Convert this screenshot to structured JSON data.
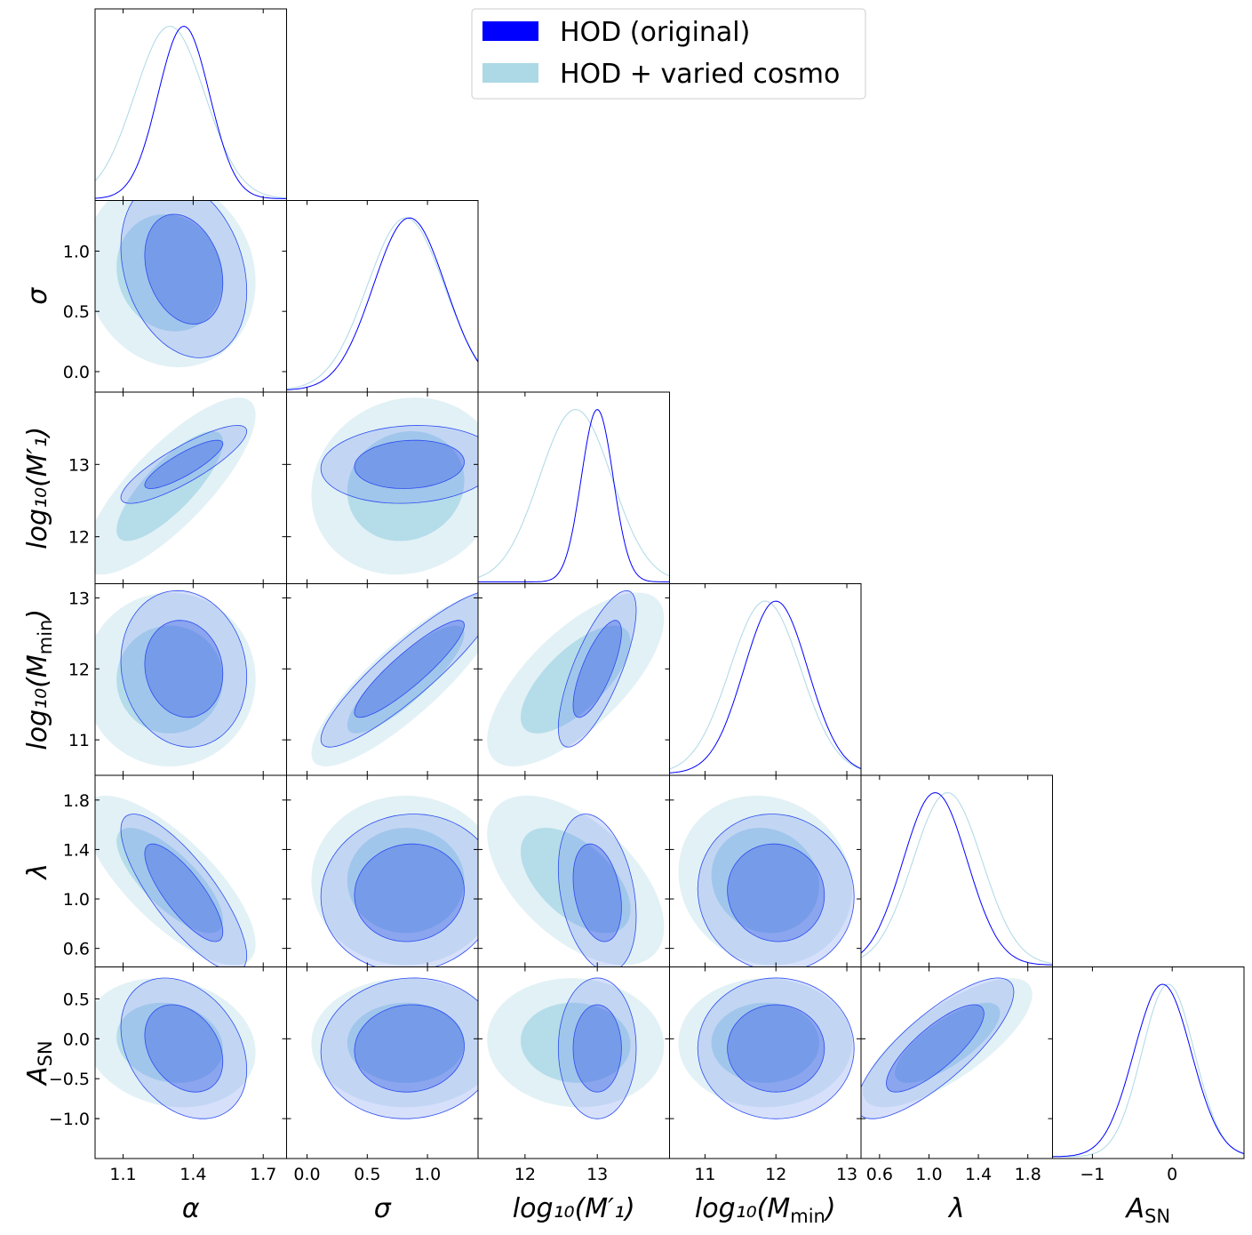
{
  "chart_data": {
    "type": "corner",
    "title": "",
    "parameters": [
      {
        "key": "alpha",
        "label": "α",
        "range": [
          0.98,
          1.8
        ],
        "ticks": [
          1.1,
          1.4,
          1.7
        ],
        "tick_labels": [
          "1.1",
          "1.4",
          "1.7"
        ]
      },
      {
        "key": "sigma",
        "label": "σ",
        "range": [
          -0.17,
          1.42
        ],
        "ticks": [
          0.0,
          0.5,
          1.0
        ],
        "tick_labels": [
          "0.0",
          "0.5",
          "1.0"
        ]
      },
      {
        "key": "logM1",
        "label": "log₁₀(M′₁)",
        "range": [
          11.35,
          14.0
        ],
        "ticks": [
          12,
          13
        ],
        "tick_labels": [
          "12",
          "13"
        ]
      },
      {
        "key": "logMmin",
        "label": "log₁₀(Mmin)",
        "range": [
          10.5,
          13.2
        ],
        "ticks": [
          11,
          12,
          13
        ],
        "tick_labels": [
          "11",
          "12",
          "13"
        ]
      },
      {
        "key": "lambda",
        "label": "λ",
        "range": [
          0.45,
          2.0
        ],
        "ticks": [
          0.6,
          1.0,
          1.4,
          1.8
        ],
        "tick_labels": [
          "0.6",
          "1.0",
          "1.4",
          "1.8"
        ]
      },
      {
        "key": "A_SN",
        "label": "ASN",
        "range": [
          -1.5,
          0.9
        ],
        "ticks": [
          -1,
          0
        ],
        "tick_labels": [
          "−1",
          "0"
        ]
      }
    ],
    "y_tick_labels": {
      "sigma": [
        "0.0",
        "0.5",
        "1.0"
      ],
      "logM1": [
        "12",
        "13"
      ],
      "logMmin": [
        "11",
        "12",
        "13"
      ],
      "lambda": [
        "0.6",
        "1.0",
        "1.4",
        "1.8"
      ],
      "A_SN": [
        "−1.0",
        "−0.5",
        "0.0",
        "0.5"
      ]
    },
    "series": [
      {
        "name": "HOD (original)",
        "color": "#0000ff",
        "means": {
          "alpha": 1.36,
          "sigma": 0.85,
          "logM1": 13.0,
          "logMmin": 12.0,
          "lambda": 1.05,
          "A_SN": -0.12
        },
        "sigmas": {
          "alpha": 0.11,
          "sigma": 0.3,
          "logM1": 0.22,
          "logMmin": 0.45,
          "lambda": 0.26,
          "A_SN": 0.36
        },
        "correlations": {
          "sigma,alpha": -0.25,
          "logM1,alpha": 0.85,
          "logM1,sigma": 0.1,
          "logMmin,alpha": -0.1,
          "logMmin,sigma": 0.9,
          "logMmin,logM1": 0.75,
          "lambda,alpha": -0.8,
          "lambda,sigma": 0.05,
          "lambda,logM1": -0.3,
          "lambda,logMmin": -0.05,
          "A_SN,alpha": -0.3,
          "A_SN,sigma": 0.05,
          "A_SN,logM1": 0.0,
          "A_SN,logMmin": 0.0,
          "A_SN,lambda": 0.8
        }
      },
      {
        "name": "HOD + varied cosmo",
        "color": "#add8e6",
        "means": {
          "alpha": 1.3,
          "sigma": 0.82,
          "logM1": 12.7,
          "logMmin": 11.85,
          "lambda": 1.15,
          "A_SN": -0.05
        },
        "sigmas": {
          "alpha": 0.15,
          "sigma": 0.32,
          "logM1": 0.5,
          "logMmin": 0.5,
          "lambda": 0.28,
          "A_SN": 0.33
        },
        "correlations": {
          "sigma,alpha": -0.1,
          "logM1,alpha": 0.8,
          "logM1,sigma": 0.1,
          "logMmin,alpha": 0.0,
          "logMmin,sigma": 0.85,
          "logMmin,logM1": 0.7,
          "lambda,alpha": -0.75,
          "lambda,sigma": 0.0,
          "lambda,logM1": -0.55,
          "lambda,logMmin": -0.1,
          "A_SN,alpha": -0.15,
          "A_SN,sigma": 0.0,
          "A_SN,logM1": -0.05,
          "A_SN,logMmin": 0.0,
          "A_SN,lambda": 0.75
        }
      }
    ],
    "contour_levels": [
      "68%",
      "95%"
    ],
    "legend": {
      "position": "top-right",
      "entries": [
        "HOD (original)",
        "HOD + varied cosmo"
      ]
    }
  }
}
